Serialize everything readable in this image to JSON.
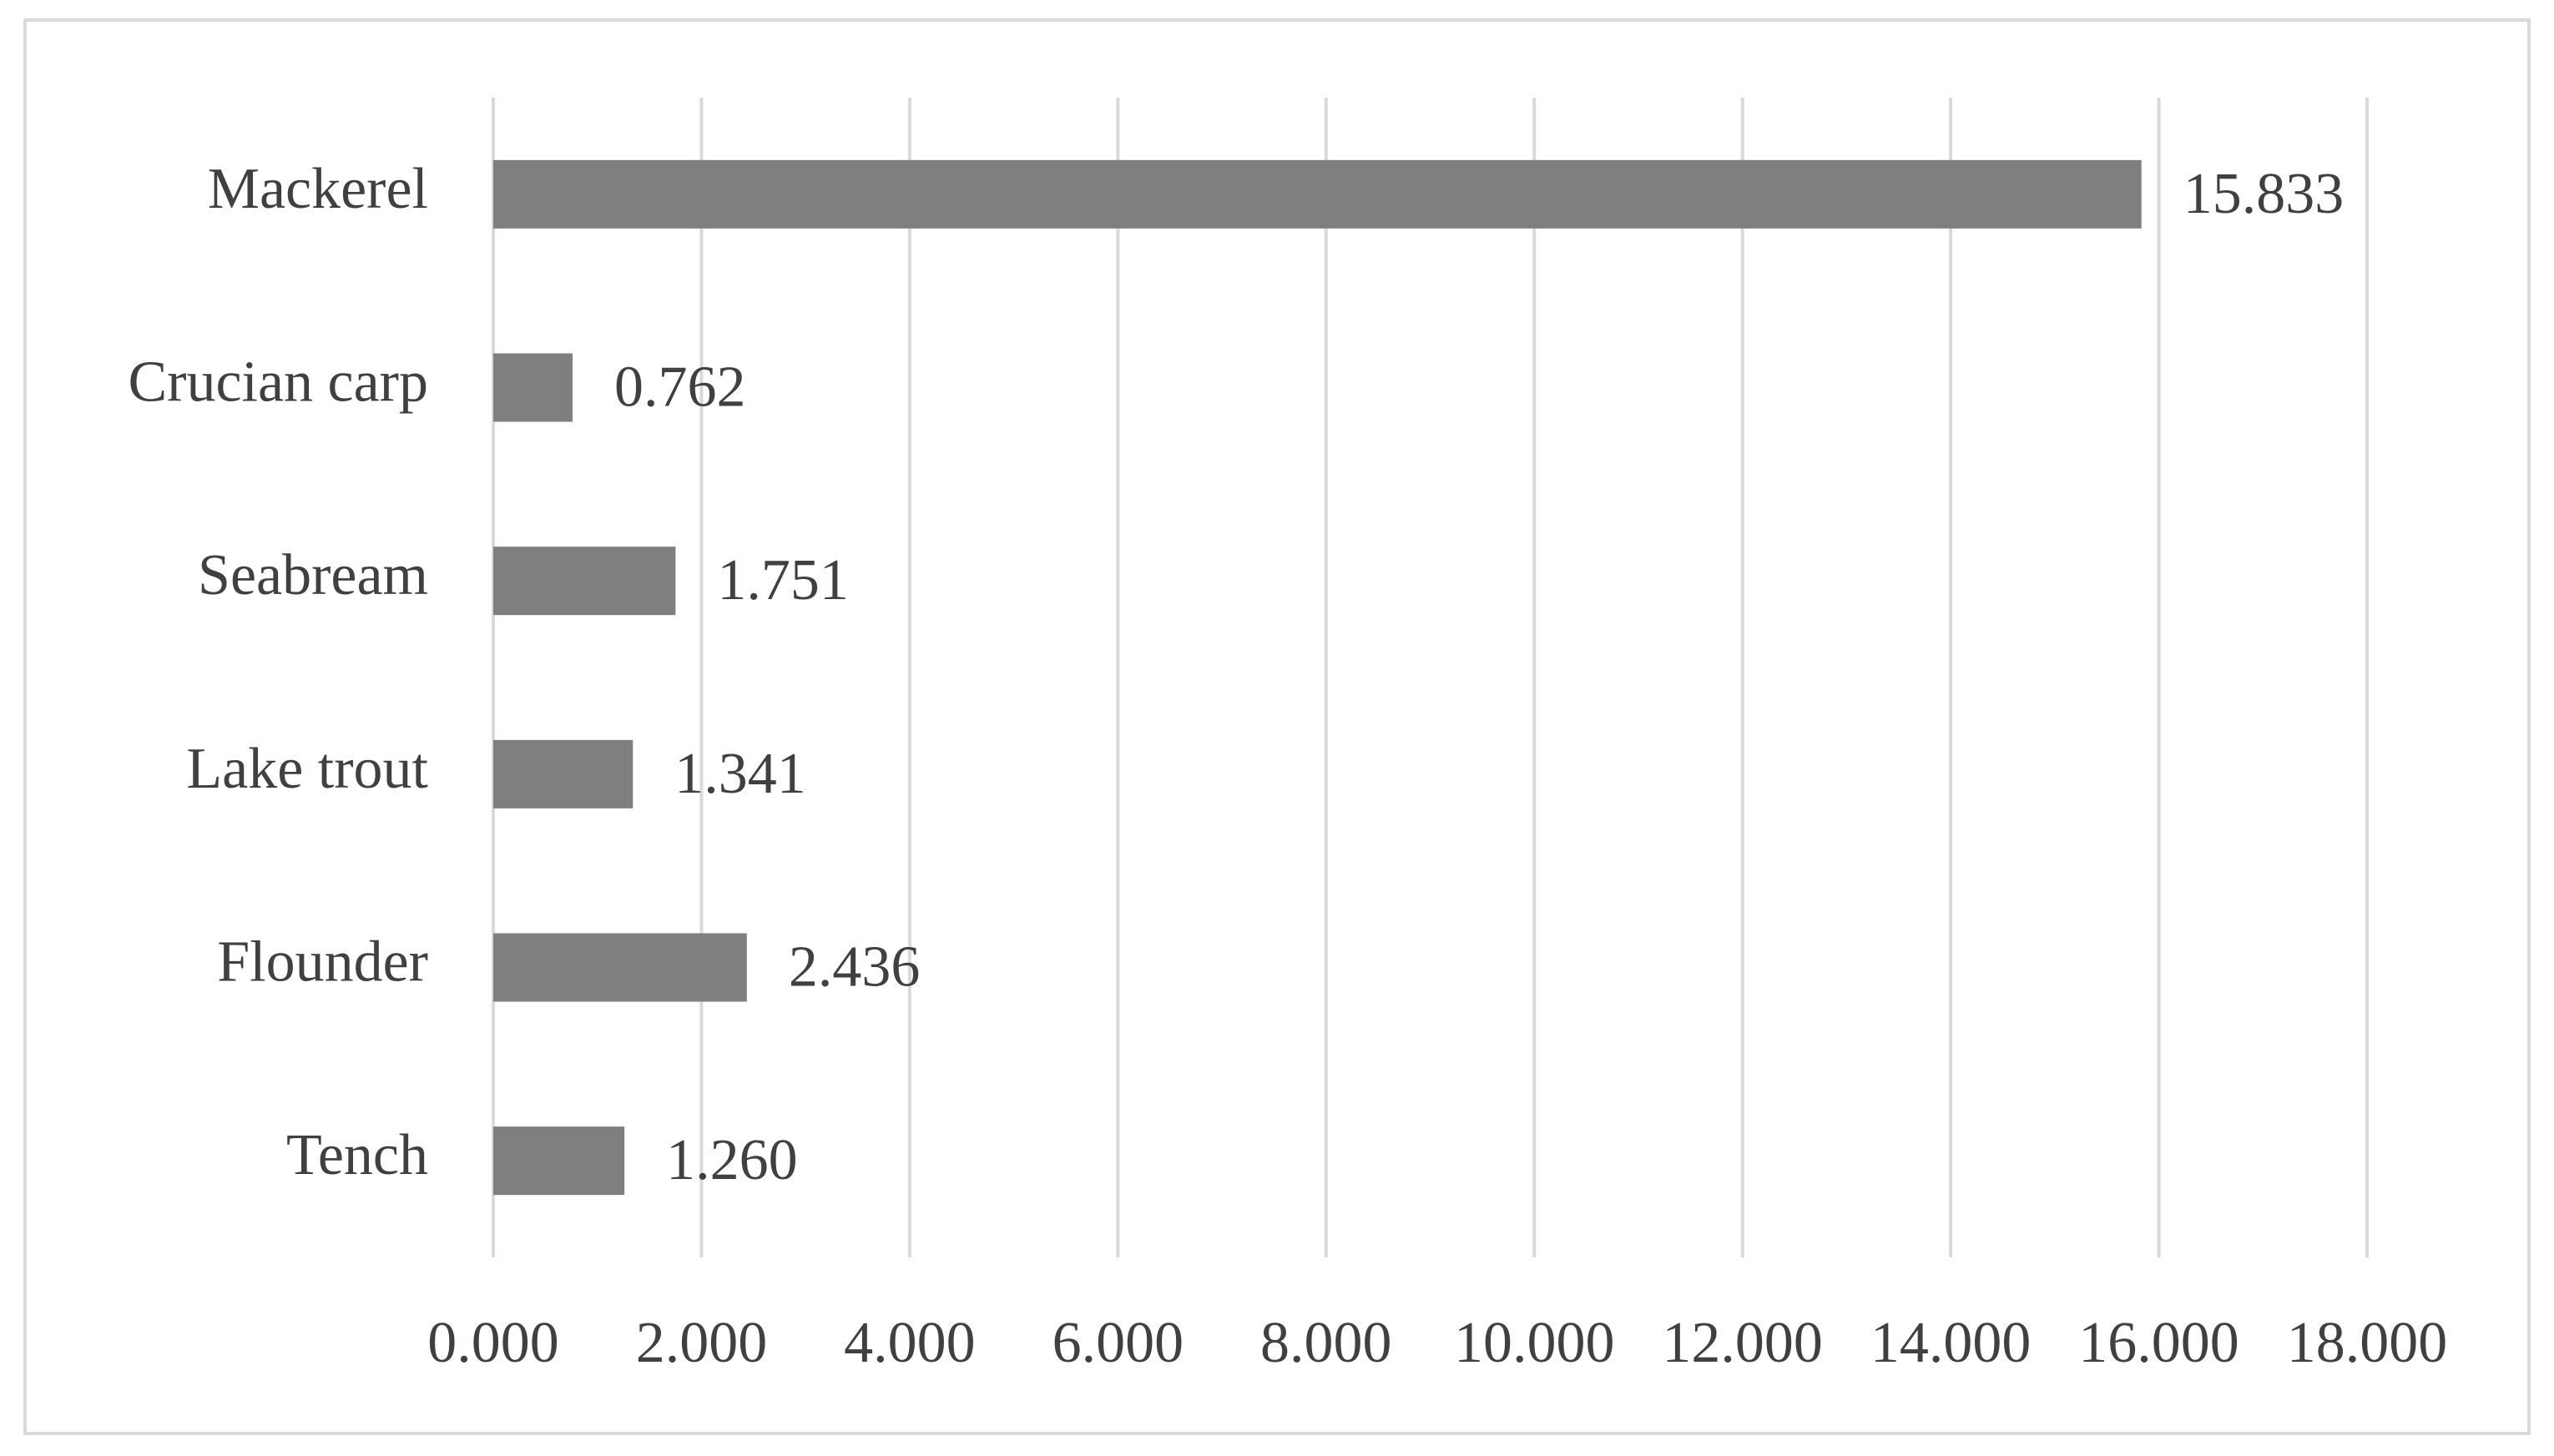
{
  "chart_data": {
    "type": "bar",
    "orientation": "horizontal",
    "categories": [
      "Mackerel",
      "Crucian carp",
      "Seabream",
      "Lake trout",
      "Flounder",
      "Tench"
    ],
    "values": [
      15.833,
      0.762,
      1.751,
      1.341,
      2.436,
      1.26
    ],
    "value_labels": [
      "15.833",
      "0.762",
      "1.751",
      "1.341",
      "2.436",
      "1.260"
    ],
    "color": "#7f7f7f",
    "xlim": [
      0,
      18
    ],
    "xticks": [
      {
        "value": 0,
        "label": "0.000"
      },
      {
        "value": 2,
        "label": "2.000"
      },
      {
        "value": 4,
        "label": "4.000"
      },
      {
        "value": 6,
        "label": "6.000"
      },
      {
        "value": 8,
        "label": "8.000"
      },
      {
        "value": 10,
        "label": "10.000"
      },
      {
        "value": 12,
        "label": "12.000"
      },
      {
        "value": 14,
        "label": "14.000"
      },
      {
        "value": 16,
        "label": "16.000"
      },
      {
        "value": 18,
        "label": "18.000"
      }
    ],
    "grid": true
  }
}
